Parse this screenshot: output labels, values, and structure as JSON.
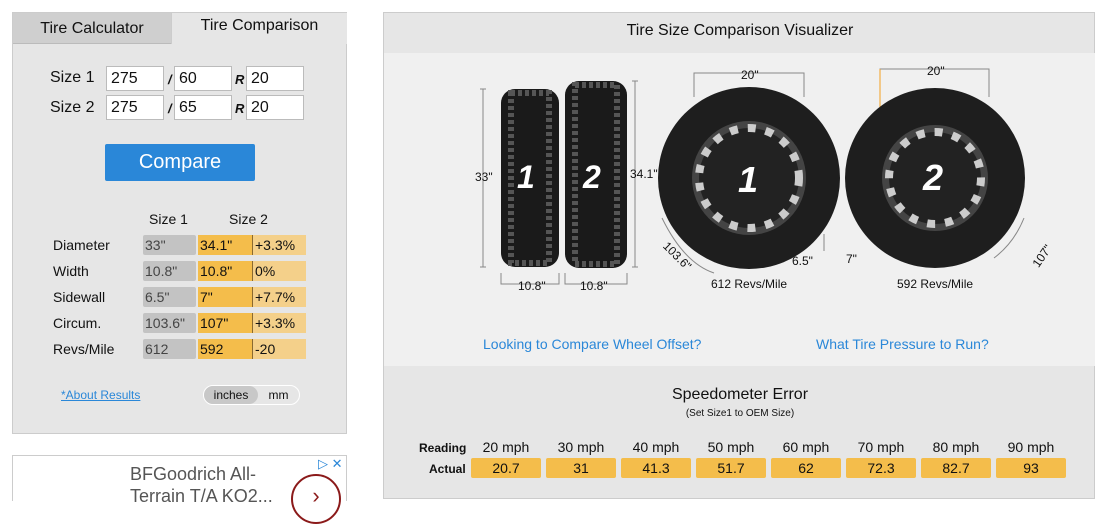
{
  "tabs": [
    "Tire Calculator",
    "Tire Comparison"
  ],
  "form": {
    "size1_label": "Size 1",
    "size2_label": "Size 2",
    "size1": {
      "width": "275",
      "aspect": "60",
      "rim": "20"
    },
    "size2": {
      "width": "275",
      "aspect": "65",
      "rim": "20"
    },
    "slash": "/",
    "r": "R",
    "compare": "Compare"
  },
  "results": {
    "headers": [
      "Size 1",
      "Size 2"
    ],
    "rows": [
      {
        "label": "Diameter",
        "s1": "33\"",
        "s2": "34.1\"",
        "diff": "+3.3%"
      },
      {
        "label": "Width",
        "s1": "10.8\"",
        "s2": "10.8\"",
        "diff": "0%"
      },
      {
        "label": "Sidewall",
        "s1": "6.5\"",
        "s2": "7\"",
        "diff": "+7.7%"
      },
      {
        "label": "Circum.",
        "s1": "103.6\"",
        "s2": "107\"",
        "diff": "+3.3%"
      },
      {
        "label": "Revs/Mile",
        "s1": "612",
        "s2": "592",
        "diff": "-20"
      }
    ]
  },
  "about": "*About Results",
  "units": {
    "a": "inches",
    "b": "mm",
    "selected": "inches"
  },
  "ad": {
    "text1": "BFGoodrich All-",
    "text2": "Terrain T/A KO2..."
  },
  "visualizer": {
    "title": "Tire Size Comparison Visualizer",
    "tire1_num": "1",
    "tire2_num": "2",
    "h1": "33\"",
    "h2": "34.1\"",
    "w1": "10.8\"",
    "w2": "10.8\"",
    "rim1": "20\"",
    "rim2": "20\"",
    "side1": "6.5\"",
    "side2": "7\"",
    "circ1": "103.6\"",
    "circ2": "107\"",
    "revs1": "612 Revs/Mile",
    "revs2": "592 Revs/Mile"
  },
  "links": [
    "Looking to Compare Wheel Offset?",
    "What Tire Pressure to Run?"
  ],
  "speedo": {
    "title": "Speedometer Error",
    "subtitle": "(Set Size1 to OEM Size)",
    "reading_label": "Reading",
    "actual_label": "Actual",
    "readings": [
      "20 mph",
      "30 mph",
      "40 mph",
      "50 mph",
      "60 mph",
      "70 mph",
      "80 mph",
      "90 mph"
    ],
    "actual": [
      "20.7",
      "31",
      "41.3",
      "51.7",
      "62",
      "72.3",
      "82.7",
      "93"
    ]
  },
  "colors": {
    "accent": "#2a87d8",
    "size2": "#f4bd4b",
    "diff": "#f4d08a"
  }
}
